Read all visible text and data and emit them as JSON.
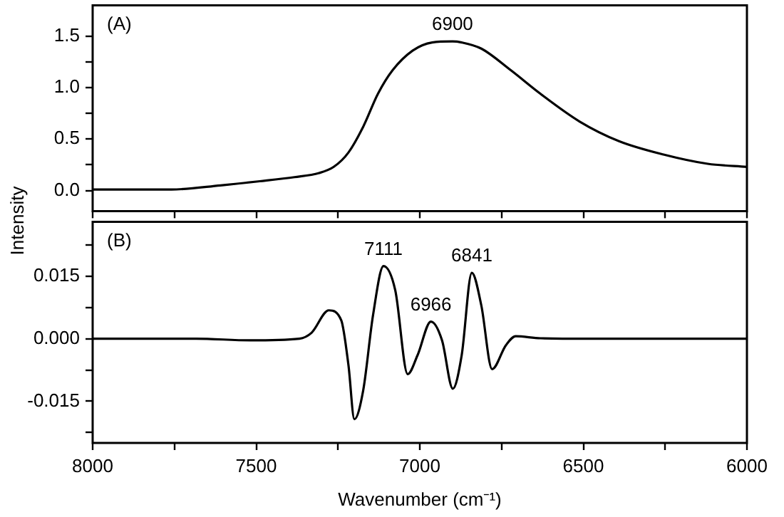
{
  "chart_data": [
    {
      "type": "line",
      "ylabel": "Intensity",
      "tick_labels": "y",
      "grid": false,
      "legend": false,
      "marker": "none",
      "line_style": "solid",
      "xlim": [
        8000,
        6000
      ],
      "ylim": [
        -0.2,
        1.8
      ],
      "xticks": [
        {
          "value": 8000,
          "label": null
        },
        {
          "value": 7750,
          "label": null
        },
        {
          "value": 7500,
          "label": null
        },
        {
          "value": 7250,
          "label": null
        },
        {
          "value": 7000,
          "label": null
        },
        {
          "value": 6750,
          "label": null
        },
        {
          "value": 6500,
          "label": null
        },
        {
          "value": 6250,
          "label": null
        },
        {
          "value": 6000,
          "label": null
        }
      ],
      "yticks": [
        {
          "value": 0,
          "label": "0.0"
        },
        {
          "value": 0.25,
          "label": null
        },
        {
          "value": 0.5,
          "label": "0.5"
        },
        {
          "value": 0.75,
          "label": null
        },
        {
          "value": 1,
          "label": "1.0"
        },
        {
          "value": 1.25,
          "label": null
        },
        {
          "value": 1.5,
          "label": "1.5"
        }
      ],
      "annotations": [
        "(A)",
        {
          "text": "6900",
          "x": 6900,
          "y": 1.45
        }
      ],
      "series": [
        {
          "color": "#000000",
          "x": [
            8000,
            7759,
            7609,
            7489,
            7383,
            7308,
            7263,
            7218,
            7173,
            7128,
            7083,
            7022,
            6962,
            6900,
            6872,
            6812,
            6722,
            6631,
            6511,
            6391,
            6255,
            6120,
            6000
          ],
          "values": [
            0.01,
            0.01,
            0.05,
            0.09,
            0.13,
            0.17,
            0.23,
            0.37,
            0.62,
            0.94,
            1.17,
            1.36,
            1.44,
            1.45,
            1.44,
            1.38,
            1.17,
            0.94,
            0.67,
            0.48,
            0.35,
            0.26,
            0.23
          ]
        }
      ]
    },
    {
      "type": "line",
      "xlabel": "Wavenumber (cm⁻¹)",
      "grid": false,
      "legend": false,
      "marker": "none",
      "line_style": "solid",
      "xlim": [
        8000,
        6000
      ],
      "ylim": [
        -0.025,
        0.028
      ],
      "xticks": [
        8000,
        {
          "value": 7750,
          "label": null
        },
        7500,
        {
          "value": 7250,
          "label": null
        },
        7000,
        {
          "value": 6750,
          "label": null
        },
        6500,
        {
          "value": 6250,
          "label": null
        },
        6000
      ],
      "yticks": [
        {
          "value": -0.0225,
          "label": null
        },
        {
          "value": -0.015,
          "label": "-0.015"
        },
        {
          "value": -0.0075,
          "label": null
        },
        {
          "value": 0,
          "label": "0.000"
        },
        {
          "value": 0.0075,
          "label": null
        },
        {
          "value": 0.015,
          "label": "0.015"
        },
        {
          "value": 0.0225,
          "label": null
        }
      ],
      "annotations": [
        "(B)",
        {
          "text": "7111",
          "x": 7111,
          "y": 0.0174
        },
        {
          "text": "6966",
          "x": 6966,
          "y": 0.0041
        },
        {
          "text": "6841",
          "x": 6841,
          "y": 0.0158
        }
      ],
      "series": [
        {
          "color": "#000000",
          "x": [
            8000,
            7684,
            7519,
            7368,
            7331,
            7278,
            7240,
            7218,
            7200,
            7173,
            7143,
            7111,
            7075,
            7037,
            7007,
            6966,
            6932,
            6899,
            6872,
            6841,
            6812,
            6779,
            6737,
            6707,
            6631,
            6481,
            6000
          ],
          "values": [
            0,
            0,
            -0.0004,
            0,
            0.0014,
            0.0068,
            0.0044,
            -0.0064,
            -0.0193,
            -0.0124,
            0.0056,
            0.0174,
            0.0116,
            -0.0085,
            -0.004,
            0.0041,
            -0.0004,
            -0.012,
            -0.004,
            0.0158,
            0.008,
            -0.0073,
            -0.0016,
            0.0006,
            0.0001,
            0,
            0
          ]
        }
      ]
    }
  ]
}
